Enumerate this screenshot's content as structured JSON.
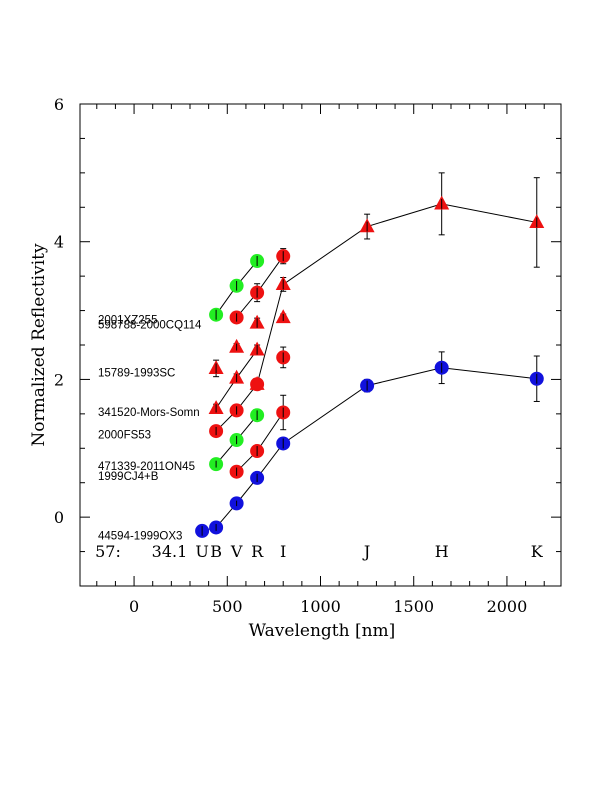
{
  "chart_data": {
    "type": "scatter",
    "xlabel": "Wavelength [nm]",
    "ylabel": "Normalized Reflectivity",
    "xlim": [
      -290,
      2290
    ],
    "ylim": [
      -1.0,
      6.0
    ],
    "x_ticks": [
      0,
      500,
      1000,
      1500,
      2000
    ],
    "y_ticks": [
      0,
      2,
      4,
      6
    ],
    "grid": false,
    "band_labels": [
      {
        "text": "U",
        "x": 365
      },
      {
        "text": "B",
        "x": 440
      },
      {
        "text": "V",
        "x": 550
      },
      {
        "text": "R",
        "x": 660
      },
      {
        "text": "I",
        "x": 800
      },
      {
        "text": "J",
        "x": 1250
      },
      {
        "text": "H",
        "x": 1650
      },
      {
        "text": "K",
        "x": 2160
      }
    ],
    "corner_text": [
      {
        "text": "57:",
        "x": -140
      },
      {
        "text": "34.1",
        "x": 190
      }
    ],
    "colors": {
      "red": "#ee1111",
      "green": "#22ee22",
      "blue": "#1111dd"
    },
    "series": [
      {
        "name": "44594-1999OX3",
        "label_y": -0.27,
        "color": "blue",
        "marker": "circle",
        "line": true,
        "points": [
          [
            365,
            -0.2,
            0.07
          ],
          [
            440,
            -0.15,
            0.05
          ],
          [
            550,
            0.2,
            0.04
          ],
          [
            660,
            0.57,
            0.06
          ],
          [
            800,
            1.07,
            0.08
          ],
          [
            1250,
            1.91,
            0.09
          ],
          [
            1650,
            2.17,
            0.23
          ],
          [
            2160,
            2.01,
            0.33
          ]
        ]
      },
      {
        "name": "1999CJ4+B",
        "label_y": 0.6,
        "color": "red",
        "marker": "circle",
        "line": true,
        "points": [
          [
            550,
            0.66,
            0.06
          ],
          [
            660,
            0.96,
            0.08
          ],
          [
            800,
            1.52,
            0.25
          ]
        ]
      },
      {
        "name": "471339-2011ON45",
        "label_y": 0.74,
        "color": "green",
        "marker": "circle",
        "line": true,
        "points": [
          [
            440,
            0.77,
            0.05
          ],
          [
            550,
            1.12,
            0.06
          ],
          [
            660,
            1.48,
            0.07
          ]
        ]
      },
      {
        "name": "2000FS53",
        "label_y": 1.2,
        "color": "red",
        "marker": "circle",
        "line": true,
        "points": [
          [
            440,
            1.25,
            0.06
          ],
          [
            550,
            1.55,
            0.06
          ],
          [
            660,
            1.93,
            0.08
          ]
        ]
      },
      {
        "name": "341520-Mors-Somn",
        "label_y": 1.53,
        "color": "red",
        "marker": "triangle",
        "line": true,
        "points": [
          [
            440,
            1.58,
            0.06
          ],
          [
            550,
            2.02,
            0.06
          ],
          [
            660,
            2.43,
            0.07
          ]
        ]
      },
      {
        "name": "15789-1993SC",
        "label_y": 2.1,
        "color": "red",
        "marker": "triangle",
        "line": false,
        "points": [
          [
            440,
            2.16,
            0.12
          ],
          [
            550,
            2.47,
            0.05
          ],
          [
            660,
            2.82,
            0.07
          ],
          [
            800,
            2.9,
            0.05
          ]
        ]
      },
      {
        "name": "598788-2000CQ114",
        "label_y": 2.8,
        "color": "red",
        "marker": "circle",
        "line": true,
        "points": [
          [
            550,
            2.9,
            0.06
          ],
          [
            660,
            3.26,
            0.13
          ],
          [
            800,
            3.79,
            0.11
          ]
        ]
      },
      {
        "name": "2001XZ255",
        "label_y": 2.87,
        "color": "green",
        "marker": "circle",
        "line": true,
        "points": [
          [
            440,
            2.94,
            0.08
          ],
          [
            550,
            3.36,
            0.07
          ],
          [
            660,
            3.72,
            0.08
          ]
        ]
      },
      {
        "name": "",
        "label_y": null,
        "color": "red",
        "marker": "triangle",
        "line": true,
        "points": [
          [
            660,
            1.93,
            0.0
          ],
          [
            800,
            3.38,
            0.1
          ],
          [
            1250,
            4.22,
            0.18
          ],
          [
            1650,
            4.55,
            0.45
          ],
          [
            2160,
            4.28,
            0.65
          ]
        ]
      },
      {
        "name": "",
        "label_y": null,
        "color": "red",
        "marker": "circle",
        "line": false,
        "points": [
          [
            800,
            2.32,
            0.15
          ]
        ]
      }
    ]
  }
}
